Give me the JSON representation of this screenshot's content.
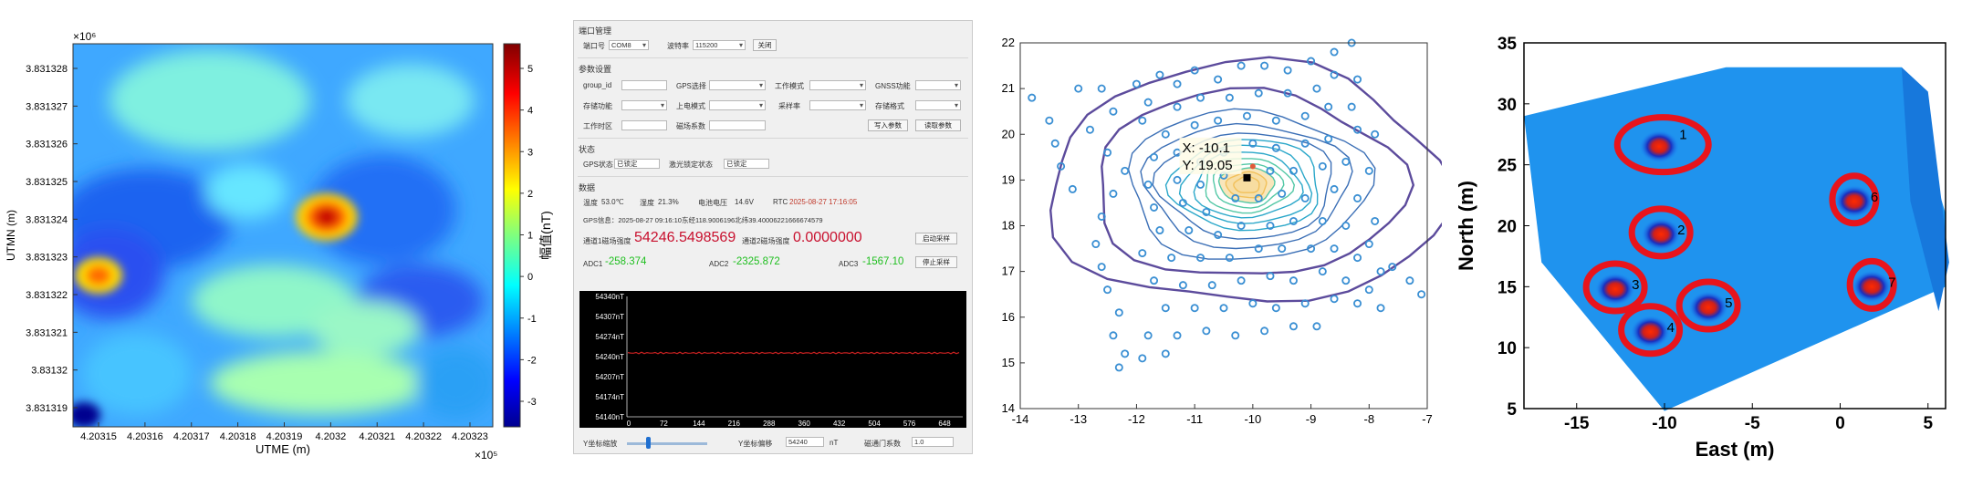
{
  "figure_a": {
    "exponent_top": "×10⁶",
    "exponent_bottom": "×10⁵",
    "ylabel": "UTMN (m)",
    "xlabel": "UTME (m)",
    "yticks": [
      "3.831328",
      "3.831327",
      "3.831326",
      "3.831325",
      "3.831324",
      "3.831323",
      "3.831322",
      "3.831321",
      "3.83132",
      "3.831319"
    ],
    "xticks": [
      "4.20315",
      "4.20316",
      "4.20317",
      "4.20318",
      "4.20319",
      "4.2032",
      "4.20321",
      "4.20322",
      "4.20323"
    ],
    "colorbar_ticks": [
      "5",
      "4",
      "3",
      "2",
      "1",
      "0",
      "-1",
      "-2",
      "-3"
    ],
    "colorbar_label": "幅值(nT)"
  },
  "app": {
    "serial": {
      "title": "端口管理",
      "port_label": "端口号",
      "port_value": "COM8",
      "baud_label": "波特率",
      "baud_value": "115200",
      "close_button": "关闭"
    },
    "params": {
      "title": "参数设置",
      "group_id_label": "group_id",
      "gps_select_label": "GPS选择",
      "work_mode_label": "工作模式",
      "gnss_label": "GNSS功能",
      "storage_label": "存储功能",
      "upload_mode_label": "上电模式",
      "sample_rate_label": "采样率",
      "storage_format_label": "存储格式",
      "timezone_label": "工作时区",
      "mag_coef_label": "磁场系数",
      "write_button": "写入参数",
      "read_button": "读取参数"
    },
    "status": {
      "title": "状态",
      "gps_label": "GPS状态",
      "gps_value": "已锁定",
      "laser_label": "激光锁定状态",
      "laser_value": "已锁定"
    },
    "data": {
      "title": "数据",
      "temp_label": "温度",
      "temp_value": "53.0℃",
      "humidity_label": "湿度",
      "humidity_value": "21.3%",
      "voltage_label": "电池电压",
      "voltage_value": "14.6V",
      "rtc_label": "RTC",
      "rtc_value": "2025-08-27 17:16:05",
      "gps_info": "GPS信息：2025-08-27 09:16:10东经118.9006196北纬39.40006221666674579",
      "ch1_label": "通道1磁场强度",
      "ch1_value": "54246.5498569",
      "ch2_label": "通道2磁场强度",
      "ch2_value": "0.0000000",
      "start_button": "启动采样",
      "adc1_label": "ADC1",
      "adc1_value": "-258.374",
      "adc2_label": "ADC2",
      "adc2_value": "-2325.872",
      "adc3_label": "ADC3",
      "adc3_value": "-1567.10",
      "stop_button": "停止采样"
    },
    "plot": {
      "yticks": [
        "54340nT",
        "54307nT",
        "54274nT",
        "54240nT",
        "54207nT",
        "54174nT",
        "54140nT"
      ],
      "xticks": [
        "0",
        "72",
        "144",
        "216",
        "288",
        "360",
        "432",
        "504",
        "576",
        "648"
      ],
      "trace_level_nT": 54246
    },
    "bottom": {
      "yscale_label": "Y坐标缩放",
      "yoffset_label": "Y坐标偏移",
      "yoffset_value": "54240",
      "yoffset_unit": "nT",
      "gate_label": "磁通门系数",
      "gate_value": "1.0",
      "slider_value": 0.24
    }
  },
  "chart_data": [
    {
      "type": "scatter",
      "title": "",
      "xlim": [
        -14,
        -7
      ],
      "ylim": [
        14,
        22
      ],
      "xticks": [
        "-14",
        "-13",
        "-12",
        "-11",
        "-10",
        "-9",
        "-8",
        "-7"
      ],
      "yticks": [
        "14",
        "15",
        "16",
        "17",
        "18",
        "19",
        "20",
        "21",
        "22"
      ],
      "annotation_x": "X: -10.1",
      "annotation_y": "Y: 19.05",
      "peak": [
        -10.1,
        19.05
      ],
      "max_marker": [
        -10.0,
        19.3
      ],
      "contour_colors": [
        "#5c4b9c",
        "#3b6fb6",
        "#2aa7c9",
        "#54c8a6",
        "#f2c15a"
      ],
      "points": [
        [
          -13.8,
          20.8
        ],
        [
          -13.5,
          20.3
        ],
        [
          -13.4,
          19.8
        ],
        [
          -13.3,
          19.3
        ],
        [
          -13.1,
          18.8
        ],
        [
          -13.0,
          21.0
        ],
        [
          -12.6,
          21.0
        ],
        [
          -12.4,
          20.5
        ],
        [
          -12.8,
          20.1
        ],
        [
          -12.5,
          19.6
        ],
        [
          -12.2,
          19.2
        ],
        [
          -12.4,
          18.7
        ],
        [
          -12.6,
          18.2
        ],
        [
          -12.7,
          17.6
        ],
        [
          -12.6,
          17.1
        ],
        [
          -12.5,
          16.6
        ],
        [
          -12.3,
          16.1
        ],
        [
          -12.4,
          15.6
        ],
        [
          -12.2,
          15.2
        ],
        [
          -12.3,
          14.9
        ],
        [
          -12.0,
          21.1
        ],
        [
          -11.6,
          21.3
        ],
        [
          -11.3,
          21.1
        ],
        [
          -11.0,
          21.4
        ],
        [
          -10.6,
          21.2
        ],
        [
          -10.2,
          21.5
        ],
        [
          -9.8,
          21.5
        ],
        [
          -9.4,
          21.4
        ],
        [
          -9.0,
          21.6
        ],
        [
          -8.6,
          21.8
        ],
        [
          -8.3,
          22.0
        ],
        [
          -11.8,
          20.7
        ],
        [
          -11.3,
          20.6
        ],
        [
          -10.9,
          20.8
        ],
        [
          -10.4,
          20.8
        ],
        [
          -9.9,
          20.9
        ],
        [
          -9.4,
          20.9
        ],
        [
          -8.9,
          21.0
        ],
        [
          -8.6,
          21.3
        ],
        [
          -8.2,
          21.2
        ],
        [
          -11.9,
          20.3
        ],
        [
          -11.5,
          20.0
        ],
        [
          -11.0,
          20.2
        ],
        [
          -10.6,
          20.3
        ],
        [
          -10.1,
          20.4
        ],
        [
          -9.6,
          20.3
        ],
        [
          -9.1,
          20.4
        ],
        [
          -8.7,
          20.6
        ],
        [
          -8.3,
          20.6
        ],
        [
          -11.7,
          19.5
        ],
        [
          -11.3,
          19.6
        ],
        [
          -10.9,
          19.4
        ],
        [
          -10.5,
          19.6
        ],
        [
          -10.0,
          19.8
        ],
        [
          -9.6,
          19.7
        ],
        [
          -9.1,
          19.8
        ],
        [
          -8.7,
          19.9
        ],
        [
          -8.2,
          20.1
        ],
        [
          -7.9,
          20.0
        ],
        [
          -11.8,
          18.9
        ],
        [
          -11.3,
          19.0
        ],
        [
          -10.9,
          18.9
        ],
        [
          -10.5,
          19.1
        ],
        [
          -9.7,
          19.2
        ],
        [
          -9.3,
          19.2
        ],
        [
          -8.8,
          19.3
        ],
        [
          -8.4,
          19.4
        ],
        [
          -8.0,
          19.2
        ],
        [
          -11.7,
          18.4
        ],
        [
          -11.2,
          18.5
        ],
        [
          -10.8,
          18.3
        ],
        [
          -10.3,
          18.6
        ],
        [
          -9.9,
          18.6
        ],
        [
          -9.5,
          18.7
        ],
        [
          -9.1,
          18.6
        ],
        [
          -8.6,
          18.8
        ],
        [
          -8.2,
          18.6
        ],
        [
          -7.9,
          18.1
        ],
        [
          -11.6,
          17.9
        ],
        [
          -11.1,
          17.9
        ],
        [
          -10.6,
          17.8
        ],
        [
          -10.2,
          18.0
        ],
        [
          -9.7,
          18.0
        ],
        [
          -9.3,
          18.1
        ],
        [
          -8.8,
          18.1
        ],
        [
          -8.4,
          18.0
        ],
        [
          -8.0,
          17.6
        ],
        [
          -11.9,
          17.4
        ],
        [
          -11.4,
          17.3
        ],
        [
          -10.9,
          17.3
        ],
        [
          -10.4,
          17.3
        ],
        [
          -9.9,
          17.5
        ],
        [
          -9.5,
          17.5
        ],
        [
          -9.0,
          17.5
        ],
        [
          -8.6,
          17.5
        ],
        [
          -8.2,
          17.3
        ],
        [
          -7.8,
          17.0
        ],
        [
          -11.7,
          16.8
        ],
        [
          -11.2,
          16.7
        ],
        [
          -10.7,
          16.7
        ],
        [
          -10.2,
          16.8
        ],
        [
          -9.7,
          16.9
        ],
        [
          -9.3,
          16.8
        ],
        [
          -8.8,
          17.0
        ],
        [
          -8.4,
          16.8
        ],
        [
          -8.0,
          16.6
        ],
        [
          -7.6,
          17.1
        ],
        [
          -7.3,
          16.8
        ],
        [
          -7.1,
          16.5
        ],
        [
          -11.5,
          16.2
        ],
        [
          -11.0,
          16.2
        ],
        [
          -10.5,
          16.2
        ],
        [
          -10.0,
          16.3
        ],
        [
          -9.6,
          16.2
        ],
        [
          -9.1,
          16.3
        ],
        [
          -8.6,
          16.4
        ],
        [
          -8.2,
          16.3
        ],
        [
          -7.8,
          16.2
        ],
        [
          -11.8,
          15.6
        ],
        [
          -11.3,
          15.6
        ],
        [
          -10.8,
          15.7
        ],
        [
          -10.3,
          15.6
        ],
        [
          -9.8,
          15.7
        ],
        [
          -9.3,
          15.8
        ],
        [
          -8.9,
          15.8
        ],
        [
          -11.9,
          15.1
        ],
        [
          -11.5,
          15.2
        ]
      ]
    },
    {
      "type": "scatter",
      "title": "",
      "xlabel": "East (m)",
      "ylabel": "North (m)",
      "xlim": [
        -18,
        6
      ],
      "ylim": [
        5,
        35
      ],
      "xticks": [
        "-15",
        "-10",
        "-5",
        "0",
        "5"
      ],
      "yticks": [
        "5",
        "10",
        "15",
        "20",
        "25",
        "30",
        "35"
      ],
      "targets": [
        {
          "label": "1",
          "x": -10.3,
          "y": 26.5
        },
        {
          "label": "2",
          "x": -10.2,
          "y": 19.3
        },
        {
          "label": "3",
          "x": -12.8,
          "y": 14.8
        },
        {
          "label": "4",
          "x": -10.8,
          "y": 11.3
        },
        {
          "label": "5",
          "x": -7.5,
          "y": 13.3
        },
        {
          "label": "6",
          "x": 0.8,
          "y": 22.0
        },
        {
          "label": "7",
          "x": 1.8,
          "y": 15.0
        }
      ]
    }
  ]
}
